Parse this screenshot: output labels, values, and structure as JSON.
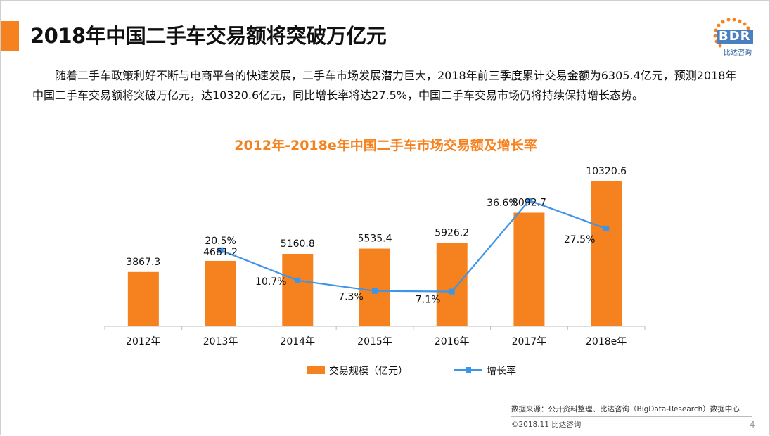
{
  "slide": {
    "title": "2018年中国二手车交易额将突破万亿元",
    "intro": "随着二手车政策利好不断与电商平台的快速发展，二手车市场发展潜力巨大，2018年前三季度累计交易金额为6305.4亿元，预测2018年中国二手车交易额将突破万亿元，达10320.6亿元，同比增长率将达27.5%，中国二手车交易市场仍将持续保持增长态势。",
    "logo_text": "BDR",
    "logo_sub": "比达咨询",
    "source": "数据来源：公开资料整理、比达咨询（BigData-Research）数据中心",
    "copyright": "©2018.11 比达咨询",
    "page_number": "4"
  },
  "colors": {
    "accent": "#f5821f",
    "bar": "#f5821f",
    "line": "#3d95e8",
    "logo_blue": "#4a7fc1"
  },
  "chart_data": {
    "type": "bar",
    "title": "2012年-2018e年中国二手车市场交易额及增长率",
    "categories": [
      "2012年",
      "2013年",
      "2014年",
      "2015年",
      "2016年",
      "2017年",
      "2018e年"
    ],
    "series": [
      {
        "name": "交易规模（亿元）",
        "type": "bar",
        "values": [
          3867.3,
          4661.2,
          5160.8,
          5535.4,
          5926.2,
          8092.7,
          10320.6
        ],
        "labels": [
          "3867.3",
          "4661.2",
          "5160.8",
          "5535.4",
          "5926.2",
          "8092.7",
          "10320.6"
        ]
      },
      {
        "name": "增长率",
        "type": "line",
        "values": [
          null,
          20.5,
          10.7,
          7.3,
          7.1,
          36.6,
          27.5
        ],
        "labels": [
          "",
          "20.5%",
          "10.7%",
          "7.3%",
          "7.1%",
          "36.6%",
          "27.5%"
        ]
      }
    ],
    "grid": false,
    "legend_position": "bottom"
  }
}
